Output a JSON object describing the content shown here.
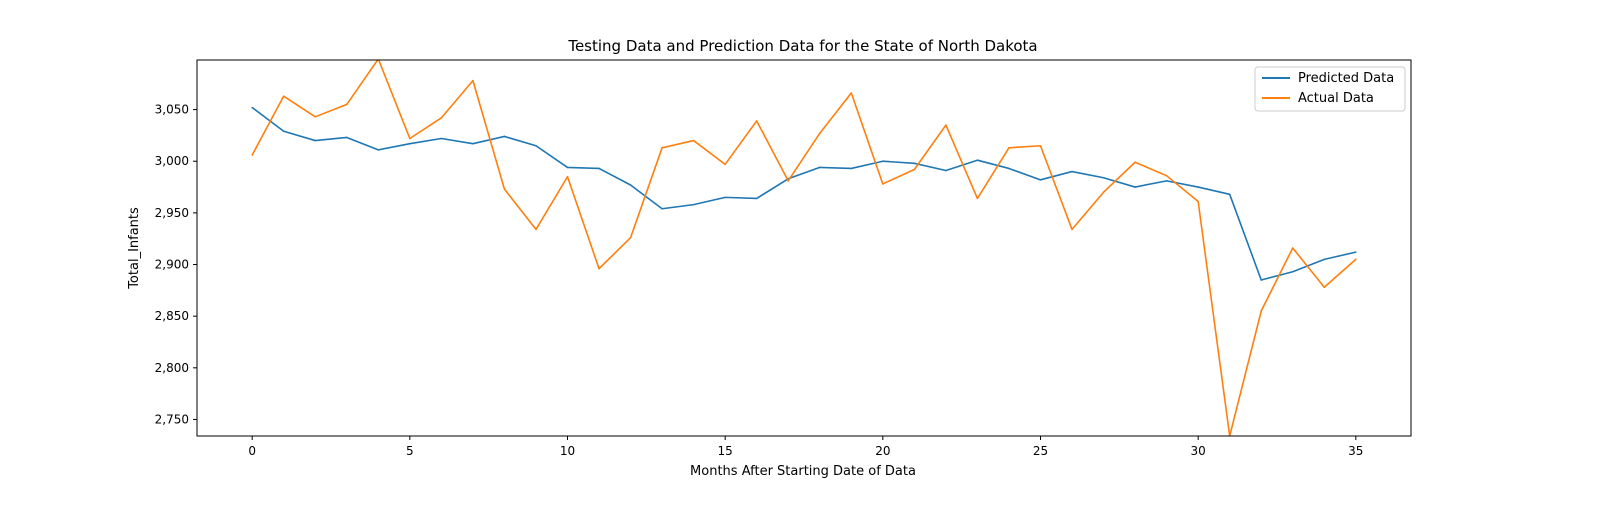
{
  "chart_data": {
    "type": "line",
    "title": "Testing Data and Prediction Data for the State of North Dakota",
    "xlabel": "Months After Starting Date of Data",
    "ylabel": "Total_Infants",
    "xlim": [
      -1.75,
      36.75
    ],
    "ylim": [
      2734,
      3098
    ],
    "xticks": [
      0,
      5,
      10,
      15,
      20,
      25,
      30,
      35
    ],
    "xtick_labels": [
      "0",
      "5",
      "10",
      "15",
      "20",
      "25",
      "30",
      "35"
    ],
    "yticks": [
      2750,
      2800,
      2850,
      2900,
      2950,
      3000,
      3050
    ],
    "ytick_labels": [
      "2,750",
      "2,800",
      "2,850",
      "2,900",
      "2,950",
      "3,000",
      "3,050"
    ],
    "grid": false,
    "legend_position": "top-right",
    "x": [
      0,
      1,
      2,
      3,
      4,
      5,
      6,
      7,
      8,
      9,
      10,
      11,
      12,
      13,
      14,
      15,
      16,
      17,
      18,
      19,
      20,
      21,
      22,
      23,
      24,
      25,
      26,
      27,
      28,
      29,
      30,
      31,
      32,
      33,
      34,
      35
    ],
    "series": [
      {
        "name": "Predicted Data",
        "color": "#1f77b4",
        "values": [
          3052,
          3029,
          3020,
          3023,
          3011,
          3017,
          3022,
          3017,
          3024,
          3015,
          2994,
          2993,
          2977,
          2954,
          2958,
          2965,
          2964,
          2983,
          2994,
          2993,
          3000,
          2998,
          2991,
          3001,
          2993,
          2982,
          2990,
          2984,
          2975,
          2981,
          2975,
          2968,
          2885,
          2893,
          2905,
          2912
        ]
      },
      {
        "name": "Actual Data",
        "color": "#ff7f0e",
        "values": [
          3006,
          3063,
          3043,
          3055,
          3099,
          3022,
          3042,
          3078,
          2973,
          2934,
          2985,
          2896,
          2926,
          3013,
          3020,
          2997,
          3039,
          2981,
          3027,
          3066,
          2978,
          2992,
          3035,
          2964,
          3013,
          3015,
          2934,
          2970,
          2999,
          2986,
          2961,
          2734,
          2855,
          2916,
          2878,
          2905
        ]
      }
    ]
  }
}
